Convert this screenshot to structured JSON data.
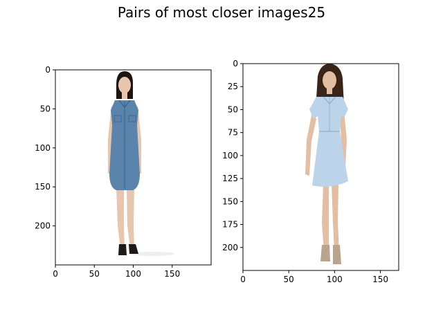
{
  "title": "Pairs of most closer images25",
  "panels": [
    {
      "x_ticks": [
        {
          "value": 0,
          "label": "0"
        },
        {
          "value": 50,
          "label": "50"
        },
        {
          "value": 100,
          "label": "100"
        },
        {
          "value": 150,
          "label": "150"
        }
      ],
      "y_ticks": [
        {
          "value": 0,
          "label": "0"
        },
        {
          "value": 50,
          "label": "50"
        },
        {
          "value": 100,
          "label": "100"
        },
        {
          "value": 150,
          "label": "150"
        },
        {
          "value": 200,
          "label": "200"
        }
      ],
      "x_range": [
        0,
        200
      ],
      "y_range": [
        0,
        250
      ],
      "colors": {
        "dress": "#5b84ad",
        "dress_dark": "#3f668f",
        "skin": "#e8c6ad",
        "hair": "#1d1411",
        "shoe": "#1e1a18"
      }
    },
    {
      "x_ticks": [
        {
          "value": 0,
          "label": "0"
        },
        {
          "value": 50,
          "label": "50"
        },
        {
          "value": 100,
          "label": "100"
        },
        {
          "value": 150,
          "label": "150"
        }
      ],
      "y_ticks": [
        {
          "value": 0,
          "label": "0"
        },
        {
          "value": 25,
          "label": "25"
        },
        {
          "value": 50,
          "label": "50"
        },
        {
          "value": 75,
          "label": "75"
        },
        {
          "value": 100,
          "label": "100"
        },
        {
          "value": 125,
          "label": "125"
        },
        {
          "value": 150,
          "label": "150"
        },
        {
          "value": 175,
          "label": "175"
        },
        {
          "value": 200,
          "label": "200"
        }
      ],
      "x_range": [
        0,
        170
      ],
      "y_range": [
        0,
        225
      ],
      "colors": {
        "dress": "#bcd4ea",
        "dress_dark": "#94b4d2",
        "skin": "#e3bea3",
        "hair": "#3a2418",
        "shoe": "#b9a48e"
      }
    }
  ]
}
